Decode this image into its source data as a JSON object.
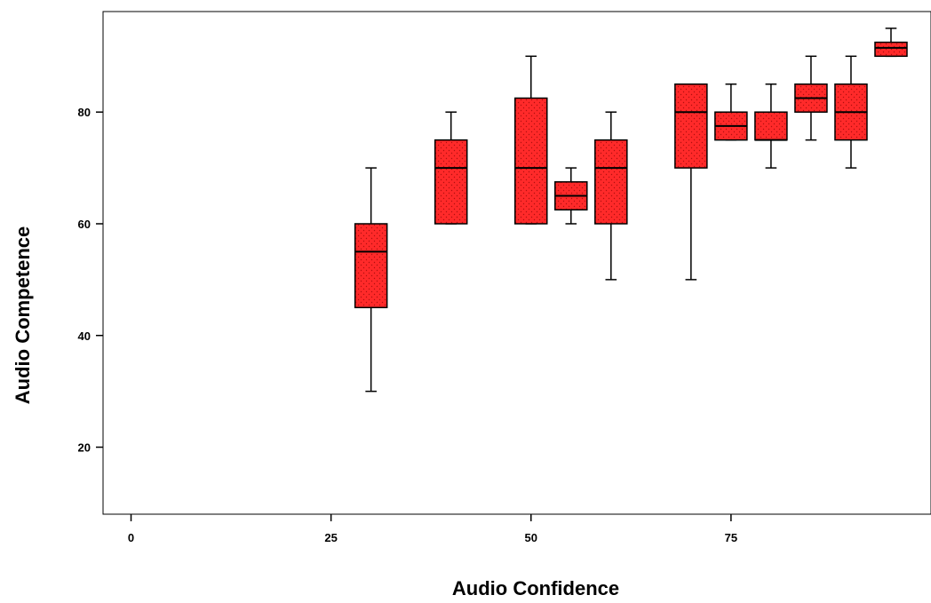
{
  "chart_data": {
    "type": "boxplot",
    "title": "",
    "xlabel": "Audio Confidence",
    "ylabel": "Audio Competence",
    "xlim": [
      -3.5,
      100
    ],
    "ylim": [
      8,
      98
    ],
    "xticks": [
      0,
      25,
      50,
      75
    ],
    "yticks": [
      20,
      40,
      60,
      80
    ],
    "box_color": "#ff2a2a",
    "box_edge_color": "#000000",
    "grid": false,
    "legend": "none",
    "boxes": [
      {
        "x": 30,
        "whisker_low": 30,
        "q1": 45,
        "median": 55,
        "q3": 60,
        "whisker_high": 70
      },
      {
        "x": 40,
        "whisker_low": 60,
        "q1": 60,
        "median": 70,
        "q3": 75,
        "whisker_high": 80
      },
      {
        "x": 50,
        "whisker_low": 60,
        "q1": 60,
        "median": 70,
        "q3": 82.5,
        "whisker_high": 90
      },
      {
        "x": 55,
        "whisker_low": 60,
        "q1": 62.5,
        "median": 65,
        "q3": 67.5,
        "whisker_high": 70
      },
      {
        "x": 60,
        "whisker_low": 50,
        "q1": 60,
        "median": 70,
        "q3": 75,
        "whisker_high": 80
      },
      {
        "x": 70,
        "whisker_low": 50,
        "q1": 70,
        "median": 80,
        "q3": 85,
        "whisker_high": 85
      },
      {
        "x": 75,
        "whisker_low": 75,
        "q1": 75,
        "median": 77.5,
        "q3": 80,
        "whisker_high": 85
      },
      {
        "x": 80,
        "whisker_low": 70,
        "q1": 75,
        "median": 75,
        "q3": 80,
        "whisker_high": 85
      },
      {
        "x": 85,
        "whisker_low": 75,
        "q1": 80,
        "median": 82.5,
        "q3": 85,
        "whisker_high": 90
      },
      {
        "x": 90,
        "whisker_low": 70,
        "q1": 75,
        "median": 80,
        "q3": 85,
        "whisker_high": 90
      },
      {
        "x": 95,
        "whisker_low": 90,
        "q1": 90,
        "median": 91.5,
        "q3": 92.5,
        "whisker_high": 95
      }
    ]
  }
}
